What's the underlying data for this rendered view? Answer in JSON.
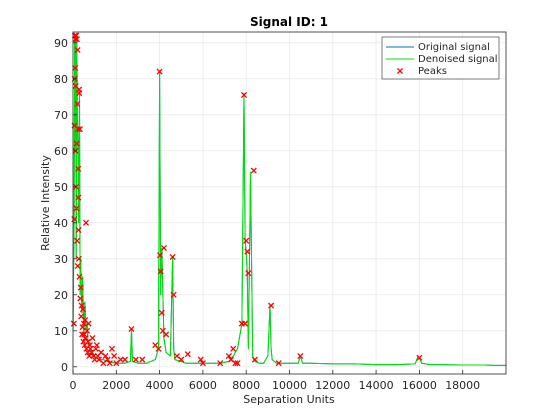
{
  "chart_data": {
    "type": "line",
    "title": "Signal ID: 1",
    "xlabel": "Separation Units",
    "ylabel": "Relative Intensity",
    "xlim": [
      0,
      20000
    ],
    "ylim": [
      -2,
      93
    ],
    "xticks": [
      0,
      2000,
      4000,
      6000,
      8000,
      10000,
      12000,
      14000,
      16000,
      18000
    ],
    "yticks": [
      0,
      10,
      20,
      30,
      40,
      50,
      60,
      70,
      80,
      90
    ],
    "grid": true,
    "legend": {
      "position": "top-right"
    },
    "series": [
      {
        "name": "Original signal",
        "color": "#0072BD",
        "style": "line",
        "x": [
          0,
          50,
          80,
          100,
          120,
          150,
          180,
          200,
          230,
          260,
          300,
          330,
          360,
          400,
          450,
          500,
          550,
          600,
          650,
          700,
          800,
          900,
          1000,
          1200,
          1400,
          1600,
          1800,
          2000,
          2400,
          2650,
          2700,
          2750,
          3000,
          3400,
          3800,
          3950,
          4000,
          4050,
          4100,
          4200,
          4300,
          4500,
          4600,
          4650,
          4700,
          5000,
          5200,
          5600,
          6000,
          6400,
          6800,
          7200,
          7400,
          7600,
          7800,
          7900,
          7950,
          8000,
          8050,
          8100,
          8200,
          8300,
          8350,
          8400,
          8600,
          8800,
          9000,
          9100,
          9150,
          9200,
          9400,
          9600,
          10000,
          10400,
          10500,
          10600,
          11000,
          12000,
          13000,
          14000,
          15000,
          15800,
          15950,
          16000,
          16100,
          16500,
          17000,
          18000,
          19000,
          19500,
          20000
        ],
        "y": [
          10,
          40,
          92,
          60,
          91,
          30,
          92,
          70,
          60,
          40,
          77,
          20,
          30,
          15,
          25,
          8,
          18,
          10,
          12,
          6,
          5,
          4,
          3,
          2,
          2,
          1.5,
          1.2,
          1,
          1,
          1.5,
          10.5,
          1.5,
          1,
          1,
          2,
          5,
          82,
          20,
          33,
          8,
          4,
          3,
          30.5,
          5,
          2,
          1.5,
          1,
          1,
          1,
          1,
          1,
          1.5,
          3,
          5,
          12,
          76,
          35,
          32,
          26,
          5,
          54,
          3,
          2,
          1.5,
          1,
          1,
          3,
          17,
          5,
          2,
          1,
          1,
          1,
          1,
          3,
          1,
          1,
          0.8,
          0.8,
          0.6,
          0.6,
          0.8,
          3,
          2.5,
          1,
          0.6,
          0.6,
          0.5,
          0.5,
          0.4,
          0.4
        ]
      },
      {
        "name": "Denoised signal",
        "color": "#00E000",
        "style": "line",
        "x": [
          0,
          50,
          80,
          100,
          120,
          150,
          180,
          200,
          230,
          260,
          300,
          330,
          360,
          400,
          450,
          500,
          550,
          600,
          650,
          700,
          800,
          900,
          1000,
          1200,
          1400,
          1600,
          1800,
          2000,
          2400,
          2650,
          2700,
          2750,
          3000,
          3400,
          3800,
          3950,
          4000,
          4050,
          4100,
          4200,
          4300,
          4500,
          4600,
          4650,
          4700,
          5000,
          5200,
          5600,
          6000,
          6400,
          6800,
          7200,
          7400,
          7600,
          7800,
          7900,
          7950,
          8000,
          8050,
          8100,
          8200,
          8300,
          8350,
          8400,
          8600,
          8800,
          9000,
          9100,
          9150,
          9200,
          9400,
          9600,
          10000,
          10400,
          10500,
          10600,
          11000,
          12000,
          13000,
          14000,
          15000,
          15800,
          15950,
          16000,
          16100,
          16500,
          17000,
          18000,
          19000,
          19500,
          20000
        ],
        "y": [
          10,
          40,
          92,
          60,
          91,
          30,
          92,
          70,
          60,
          40,
          77,
          20,
          30,
          15,
          25,
          8,
          18,
          10,
          12,
          6,
          5,
          4,
          3,
          2,
          2,
          1.5,
          1.2,
          1,
          1,
          1.5,
          10.5,
          1.5,
          1,
          1,
          2,
          5,
          82,
          20,
          33,
          8,
          4,
          3,
          30.5,
          5,
          2,
          1.5,
          1,
          1,
          1,
          1,
          1,
          1.5,
          3,
          5,
          12,
          76,
          35,
          32,
          26,
          5,
          54,
          3,
          2,
          1.5,
          1,
          1,
          3,
          17,
          5,
          2,
          1,
          1,
          1,
          1,
          3,
          1,
          1,
          0.8,
          0.8,
          0.6,
          0.6,
          0.8,
          3,
          2.5,
          1,
          0.6,
          0.6,
          0.5,
          0.5,
          0.4,
          0.4
        ]
      },
      {
        "name": "Peaks",
        "color": "#FF0000",
        "style": "marker-x",
        "x": [
          40,
          60,
          70,
          80,
          90,
          100,
          110,
          120,
          130,
          140,
          150,
          160,
          170,
          180,
          190,
          200,
          210,
          220,
          230,
          240,
          250,
          260,
          270,
          280,
          290,
          300,
          320,
          340,
          360,
          380,
          400,
          420,
          440,
          460,
          480,
          500,
          520,
          540,
          560,
          580,
          600,
          620,
          650,
          680,
          700,
          720,
          750,
          780,
          800,
          850,
          900,
          950,
          1000,
          1050,
          1100,
          1150,
          1200,
          1300,
          1400,
          1500,
          1600,
          1700,
          1800,
          1900,
          2000,
          2200,
          2400,
          2700,
          2900,
          3200,
          3800,
          3950,
          4000,
          4020,
          4050,
          4100,
          4150,
          4200,
          4300,
          4600,
          4650,
          4800,
          5000,
          5300,
          5900,
          6000,
          6800,
          7200,
          7300,
          7400,
          7500,
          7600,
          7800,
          7900,
          7950,
          8000,
          8050,
          8100,
          8350,
          8400,
          9150,
          9500,
          10500,
          16000
        ],
        "y": [
          12,
          41,
          67,
          80,
          92,
          83,
          91,
          60,
          78,
          50,
          92,
          44,
          62,
          91,
          35,
          73,
          88,
          28,
          66,
          55,
          47,
          38,
          30,
          77,
          76,
          25,
          66,
          19,
          22,
          14,
          17,
          9,
          11,
          16,
          7,
          12,
          9,
          6,
          13,
          8,
          40,
          5,
          10,
          4,
          7,
          12,
          3,
          6,
          5,
          4,
          8,
          3,
          2,
          5,
          6,
          3,
          2,
          4,
          1,
          3,
          2,
          1,
          5,
          3,
          1,
          2,
          2,
          10.5,
          2,
          2,
          6,
          5,
          82,
          31,
          26.5,
          15,
          10,
          33,
          9,
          30.5,
          20,
          3,
          2,
          3.5,
          2,
          1,
          1,
          3,
          2,
          5,
          1,
          1,
          12,
          75.5,
          12,
          35,
          32,
          26,
          54.5,
          2,
          17,
          1,
          3,
          2.5
        ]
      }
    ]
  }
}
